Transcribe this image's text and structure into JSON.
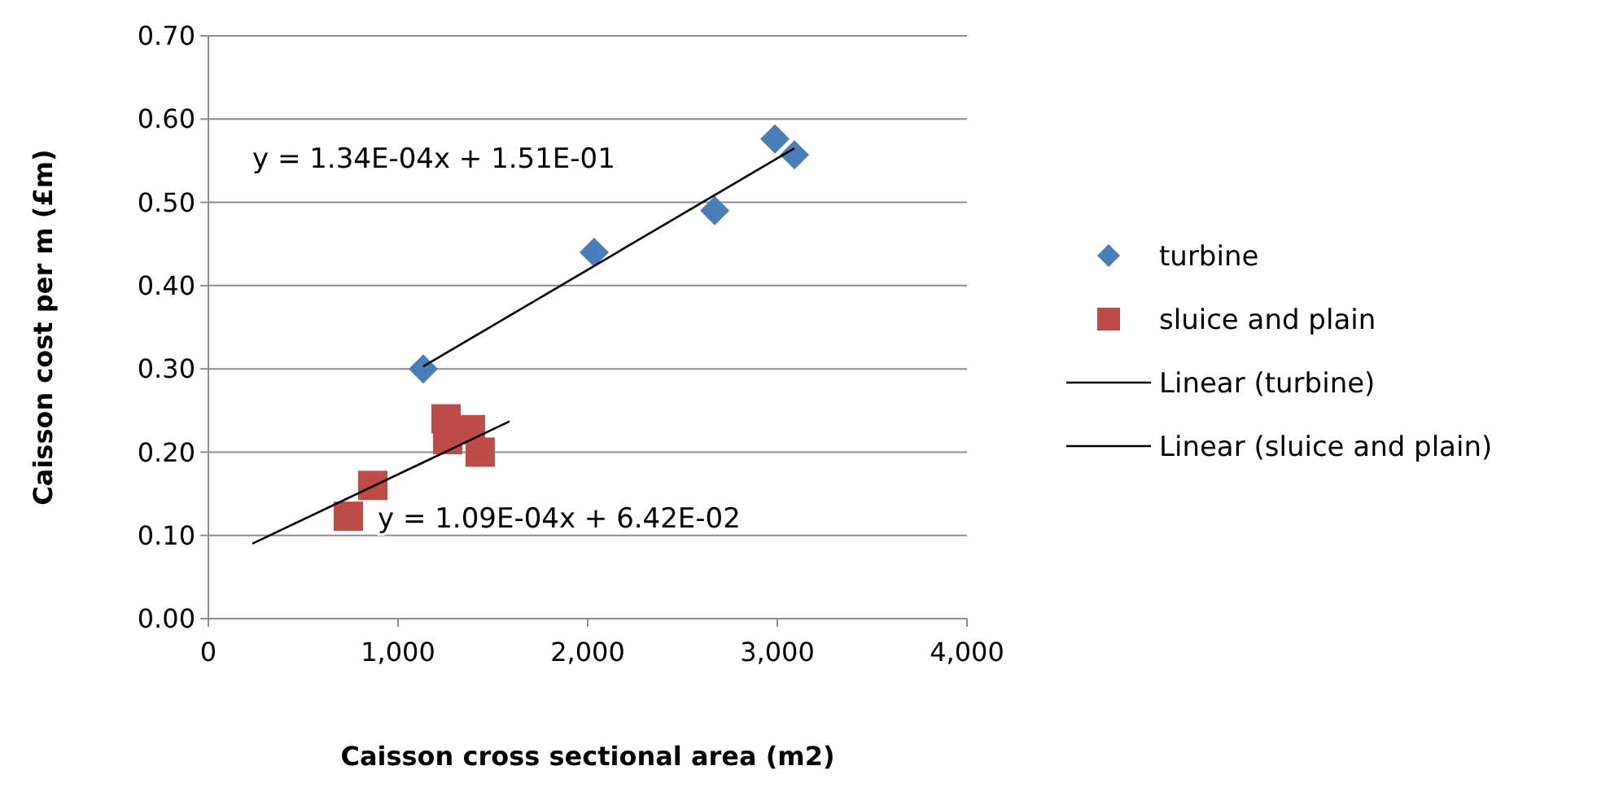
{
  "chart_data": {
    "type": "scatter",
    "xlabel": "Caisson cross sectional area (m2)",
    "ylabel": "Caisson cost per m (£m)",
    "xlim": [
      0,
      4000
    ],
    "xticks": [
      {
        "value": 0,
        "label": "0"
      },
      {
        "value": 1000,
        "label": "1,000"
      },
      {
        "value": 2000,
        "label": "2,000"
      },
      {
        "value": 3000,
        "label": "3,000"
      },
      {
        "value": 4000,
        "label": "4,000"
      }
    ],
    "ylim": [
      0,
      0.7
    ],
    "yticks": [
      {
        "value": 0,
        "label": "0.00"
      },
      {
        "value": 0.1,
        "label": "0.10"
      },
      {
        "value": 0.2,
        "label": "0.20"
      },
      {
        "value": 0.3,
        "label": "0.30"
      },
      {
        "value": 0.4,
        "label": "0.40"
      },
      {
        "value": 0.5,
        "label": "0.50"
      },
      {
        "value": 0.6,
        "label": "0.60"
      },
      {
        "value": 0.7,
        "label": "0.70"
      }
    ],
    "grid": "y",
    "legend": "right",
    "series": [
      {
        "name": "turbine",
        "marker": "diamond",
        "color": "#4a7ebb",
        "x": [
          1133,
          2034,
          2670,
          2987,
          3090
        ],
        "values": [
          0.3,
          0.44,
          0.49,
          0.576,
          0.557
        ]
      },
      {
        "name": "sluice and plain",
        "marker": "square",
        "color": "#be4b48",
        "x": [
          738,
          867,
          1253,
          1262,
          1382,
          1433
        ],
        "values": [
          0.123,
          0.16,
          0.24,
          0.215,
          0.227,
          0.2
        ]
      },
      {
        "name": "Linear (turbine)",
        "type": "line",
        "color": "#000000",
        "x": [
          1133,
          3090
        ],
        "values": [
          0.303,
          0.565
        ]
      },
      {
        "name": "Linear (sluice and plain)",
        "type": "line",
        "color": "#000000",
        "x": [
          232,
          1588
        ],
        "values": [
          0.09,
          0.237
        ]
      }
    ],
    "annotations": [
      "y = 1.34E-04x + 1.51E-01",
      "y = 1.09E-04x + 6.42E-02"
    ]
  }
}
